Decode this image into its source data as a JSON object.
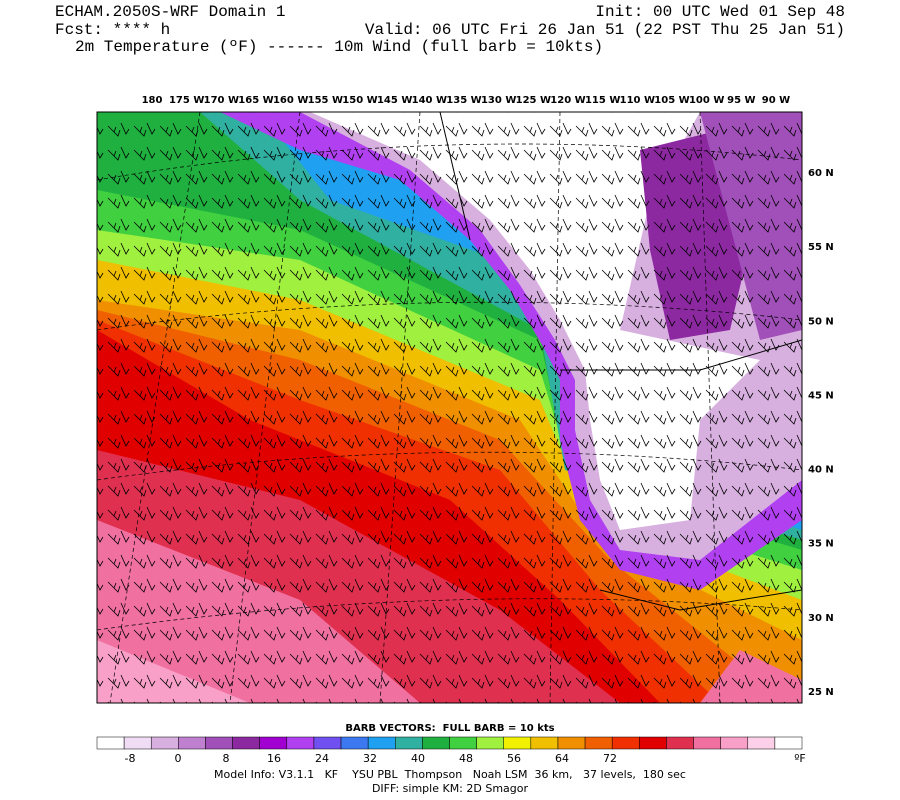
{
  "header": {
    "title": "ECHAM.2050S-WRF Domain 1",
    "forecast": "Fcst: **** h",
    "fields": "2m Temperature (ºF) ------ 10m Wind (full barb = 10kts)",
    "init": "Init: 00 UTC Wed 01 Sep 48",
    "valid": "Valid: 06 UTC Fri 26 Jan 51 (22 PST Thu 25 Jan 51)"
  },
  "map": {
    "lon_labels": [
      "180",
      "175 W",
      "170 W",
      "165 W",
      "160 W",
      "155 W",
      "150 W",
      "145 W",
      "140 W",
      "135 W",
      "130 W",
      "125 W",
      "120 W",
      "115 W",
      "110 W",
      "105 W",
      "100 W",
      "95 W",
      "90 W"
    ],
    "lat_labels": [
      "60 N",
      "55 N",
      "50 N",
      "45 N",
      "40 N",
      "35 N",
      "30 N",
      "25 N"
    ]
  },
  "legend": {
    "title": "BARB VECTORS:  FULL BARB = 10 kts",
    "colors": [
      "#ffffff",
      "#f0dcf5",
      "#d8b0e0",
      "#c080d0",
      "#a050b8",
      "#8c28a0",
      "#a000d0",
      "#b040f0",
      "#7050f0",
      "#3c78f0",
      "#20a0f0",
      "#30b0a0",
      "#20b040",
      "#40d040",
      "#a0f040",
      "#f0f000",
      "#f0c000",
      "#f09000",
      "#f06000",
      "#f03000",
      "#e00000",
      "#e03050",
      "#f070a0",
      "#f8a0c8",
      "#fcd0e8",
      "#ffffff"
    ],
    "labels": [
      "-8",
      "0",
      "8",
      "16",
      "24",
      "32",
      "40",
      "48",
      "56",
      "64",
      "72"
    ],
    "unit": "ºF"
  },
  "footer": {
    "model_info": "Model Info: V3.1.1   KF    YSU PBL  Thompson   Noah LSM  36 km,   37 levels,  180 sec",
    "diff": "DIFF: simple KM: 2D Smagor"
  }
}
